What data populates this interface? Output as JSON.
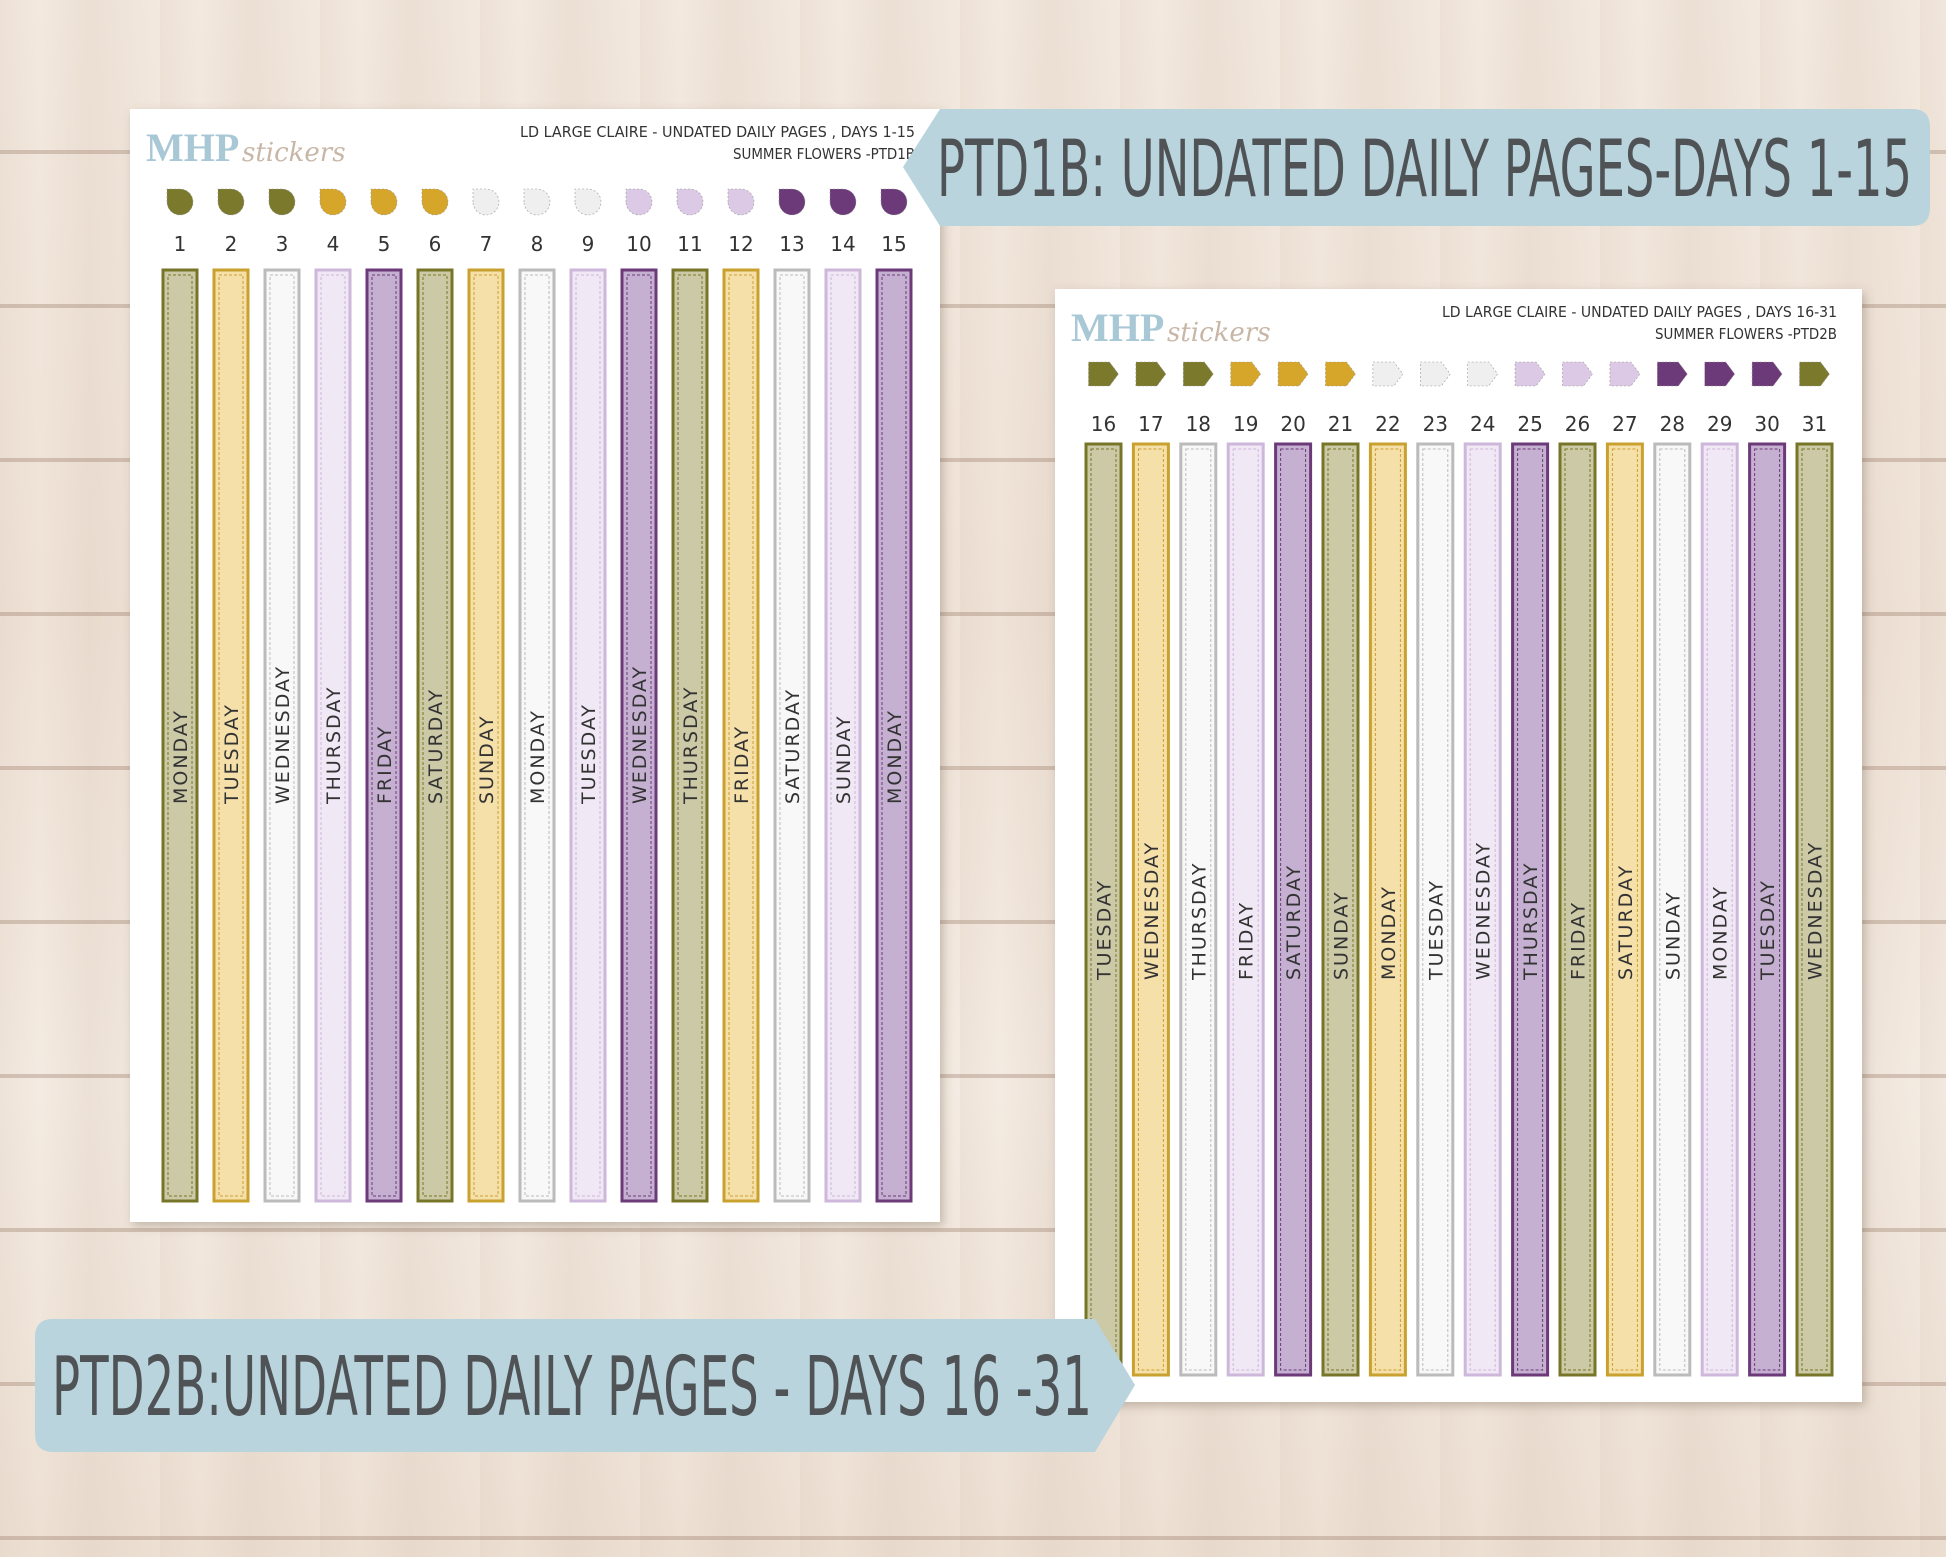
{
  "banners": [
    {
      "text": "PTD1B: UNDATED DAILY PAGES-DAYS 1-15"
    },
    {
      "text": "PTD2B:UNDATED DAILY PAGES - DAYS 16 -31"
    }
  ],
  "sheets": [
    {
      "brand": "MHP",
      "brand_script": "stickers",
      "title": "LD LARGE CLAIRE - UNDATED DAILY PAGES , DAYS 1-15",
      "subtitle": "SUMMER FLOWERS -PTD1B",
      "days": [
        {
          "number": 1,
          "label": "MONDAY"
        },
        {
          "number": 2,
          "label": "TUESDAY"
        },
        {
          "number": 3,
          "label": "WEDNESDAY"
        },
        {
          "number": 4,
          "label": "THURSDAY"
        },
        {
          "number": 5,
          "label": "FRIDAY"
        },
        {
          "number": 6,
          "label": "SATURDAY"
        },
        {
          "number": 7,
          "label": "SUNDAY"
        },
        {
          "number": 8,
          "label": "MONDAY"
        },
        {
          "number": 9,
          "label": "TUESDAY"
        },
        {
          "number": 10,
          "label": "WEDNESDAY"
        },
        {
          "number": 11,
          "label": "THURSDAY"
        },
        {
          "number": 12,
          "label": "FRIDAY"
        },
        {
          "number": 13,
          "label": "SATURDAY"
        },
        {
          "number": 14,
          "label": "SUNDAY"
        },
        {
          "number": 15,
          "label": "MONDAY"
        }
      ]
    },
    {
      "brand": "MHP",
      "brand_script": "stickers",
      "title": "LD LARGE CLAIRE - UNDATED DAILY PAGES , DAYS 16-31",
      "subtitle": "SUMMER FLOWERS -PTD2B",
      "days": [
        {
          "number": 16,
          "label": "TUESDAY"
        },
        {
          "number": 17,
          "label": "WEDNESDAY"
        },
        {
          "number": 18,
          "label": "THURSDAY"
        },
        {
          "number": 19,
          "label": "FRIDAY"
        },
        {
          "number": 20,
          "label": "SATURDAY"
        },
        {
          "number": 21,
          "label": "SUNDAY"
        },
        {
          "number": 22,
          "label": "MONDAY"
        },
        {
          "number": 23,
          "label": "TUESDAY"
        },
        {
          "number": 24,
          "label": "WEDNESDAY"
        },
        {
          "number": 25,
          "label": "THURSDAY"
        },
        {
          "number": 26,
          "label": "FRIDAY"
        },
        {
          "number": 27,
          "label": "SATURDAY"
        },
        {
          "number": 28,
          "label": "SUNDAY"
        },
        {
          "number": 29,
          "label": "MONDAY"
        },
        {
          "number": 30,
          "label": "TUESDAY"
        },
        {
          "number": 31,
          "label": "WEDNESDAY"
        }
      ]
    }
  ]
}
